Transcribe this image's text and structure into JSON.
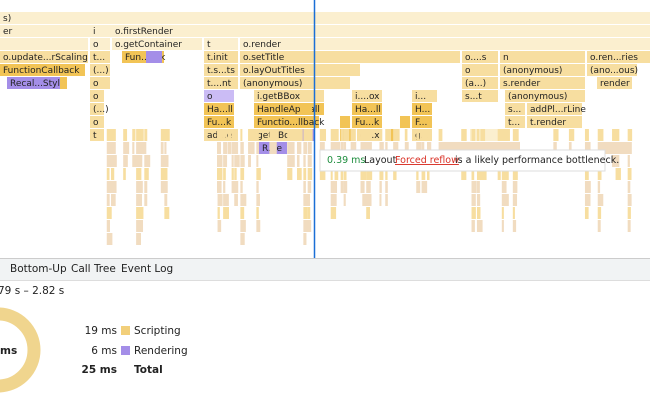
{
  "flame": {
    "rows": [
      [
        "s)"
      ],
      [
        "er",
        "i",
        "o.firstRender"
      ],
      [
        "o",
        "o.getContainer",
        "t",
        "o.render"
      ],
      [
        "o.update...rScaling",
        "t...",
        "Fun...ack",
        "t.init",
        "o.setTitle",
        "o....s",
        "n",
        "o.ren...ries"
      ],
      [
        "FunctionCallback",
        "(...)",
        "t.s...ts",
        "o.layOutTitles",
        "o",
        "(anonymous)",
        "(ano...ous)"
      ],
      [
        "Recal...Style",
        "o",
        "t....nt",
        "(anonymous)",
        "(a...)",
        "s.render",
        "render"
      ],
      [
        "o",
        "o",
        "i.getBBox",
        "i....ox",
        "i...",
        "s...t",
        "(anonymous)"
      ],
      [
        "(...)",
        "Ha...ll",
        "HandleApiCall",
        "Ha...ll",
        "H...",
        "s...",
        "addPl...rLine"
      ],
      [
        "o",
        "Fu...k",
        "Functio...llback",
        "Fu...k",
        "F...",
        "t...",
        "t.render"
      ],
      [
        "t",
        "ad...er",
        "getBBox",
        "g...x",
        "g..."
      ],
      [
        "R...e"
      ]
    ]
  },
  "tooltip": {
    "duration": "0.39 ms",
    "event": "Layout",
    "link": "Forced reflow",
    "message": "is a likely performance bottleneck."
  },
  "tabs": [
    "Bottom-Up",
    "Call Tree",
    "Event Log"
  ],
  "summary": {
    "range": "79 s – 2.82 s",
    "donut_label": "ms",
    "rows": [
      {
        "value": "19 ms",
        "name": "Scripting"
      },
      {
        "value": "6 ms",
        "name": "Rendering"
      },
      {
        "value": "25 ms",
        "name": "Total"
      }
    ]
  }
}
